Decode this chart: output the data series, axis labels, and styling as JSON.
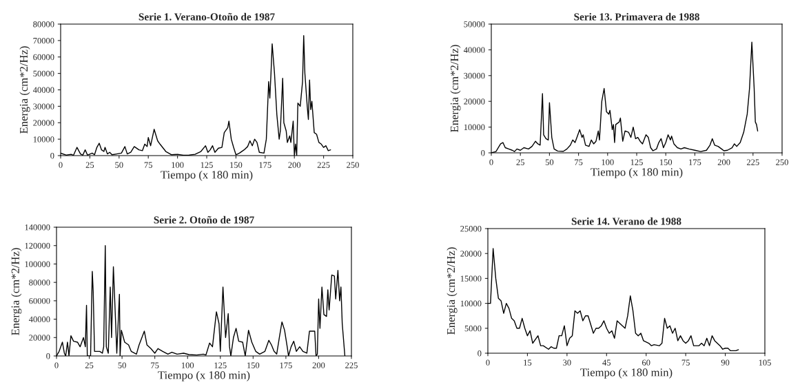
{
  "chart_data": [
    {
      "type": "line",
      "title": "Serie 1. Verano-Otoño de 1987",
      "xlabel": "Tiempo (x 180 min)",
      "ylabel": "Energia (cm*2/Hz)",
      "xlim": [
        0,
        250
      ],
      "ylim": [
        0,
        80000
      ],
      "xticks": [
        0,
        25,
        50,
        75,
        100,
        125,
        150,
        175,
        200,
        225,
        250
      ],
      "yticks": [
        0,
        10000,
        20000,
        30000,
        40000,
        50000,
        60000,
        70000,
        80000
      ],
      "grid": false,
      "marker": "none",
      "line_style": "solid",
      "series": [
        {
          "color": "#000000",
          "x": [
            0,
            5,
            9,
            11,
            14,
            17,
            19,
            21,
            23,
            27,
            29,
            31,
            33,
            35,
            37,
            38,
            40,
            42,
            44,
            48,
            52,
            55,
            57,
            60,
            63,
            67,
            70,
            72,
            74,
            75,
            77,
            80,
            83,
            85,
            90,
            95,
            100,
            105,
            110,
            115,
            120,
            124,
            126,
            128,
            130,
            132,
            135,
            138,
            140,
            143,
            144,
            146,
            148,
            150,
            153,
            157,
            160,
            162,
            164,
            166,
            168,
            170,
            174,
            176,
            178,
            179,
            180,
            181,
            183,
            185,
            187,
            188,
            190,
            191,
            193,
            194,
            196,
            197,
            199,
            200,
            201,
            202,
            203,
            205,
            207,
            208,
            209,
            211,
            212,
            213,
            214,
            215,
            217,
            219,
            221,
            223,
            225,
            227,
            229,
            231
          ],
          "values": [
            1500,
            300,
            800,
            200,
            5000,
            1000,
            300,
            3500,
            300,
            1500,
            500,
            5000,
            7500,
            3500,
            2500,
            5000,
            1000,
            2000,
            500,
            1000,
            1500,
            5500,
            1000,
            2000,
            5500,
            3500,
            3000,
            7000,
            5500,
            11000,
            6000,
            16000,
            9000,
            7000,
            2500,
            500,
            800,
            200,
            300,
            800,
            2500,
            6000,
            2000,
            3500,
            6000,
            2000,
            4500,
            5000,
            14000,
            17000,
            21000,
            10000,
            5000,
            500,
            1500,
            3500,
            5500,
            9000,
            6000,
            10000,
            8000,
            2000,
            1500,
            10000,
            45000,
            35000,
            50000,
            68000,
            50000,
            25000,
            10000,
            15000,
            47000,
            20000,
            15000,
            8000,
            12000,
            8000,
            21000,
            0,
            7000,
            0,
            32000,
            30000,
            45000,
            73000,
            50000,
            30000,
            22000,
            46000,
            28000,
            33000,
            14000,
            13000,
            8000,
            7000,
            5000,
            6000,
            3000,
            3500
          ]
        }
      ]
    },
    {
      "type": "line",
      "title": "Serie 13. Primavera de 1988",
      "xlabel": "Tiempo (x 180 min)",
      "ylabel": "Energia (cm*2/Hz)",
      "xlim": [
        0,
        250
      ],
      "ylim": [
        0,
        50000
      ],
      "xticks": [
        0,
        25,
        50,
        75,
        100,
        125,
        150,
        175,
        200,
        225,
        250
      ],
      "yticks": [
        0,
        10000,
        20000,
        30000,
        40000,
        50000
      ],
      "grid": false,
      "marker": "none",
      "line_style": "solid",
      "series": [
        {
          "color": "#000000",
          "x": [
            0,
            4,
            8,
            10,
            12,
            15,
            18,
            20,
            22,
            25,
            28,
            32,
            35,
            38,
            40,
            42,
            44,
            45,
            47,
            49,
            50,
            52,
            54,
            57,
            62,
            65,
            68,
            70,
            72,
            74,
            76,
            78,
            79,
            81,
            84,
            86,
            88,
            90,
            92,
            93,
            95,
            97,
            99,
            101,
            102,
            104,
            105,
            106,
            107,
            110,
            111,
            113,
            115,
            118,
            120,
            122,
            124,
            126,
            128,
            130,
            133,
            135,
            137,
            139,
            142,
            144,
            146,
            148,
            150,
            152,
            154,
            155,
            157,
            160,
            163,
            166,
            170,
            175,
            180,
            185,
            188,
            190,
            192,
            195,
            198,
            200,
            203,
            207,
            209,
            211,
            214,
            217,
            220,
            222,
            224,
            226,
            227,
            228,
            229
          ],
          "values": [
            0,
            500,
            3500,
            4000,
            2000,
            1500,
            1000,
            500,
            1500,
            1000,
            2000,
            1500,
            2500,
            4500,
            3500,
            3000,
            23000,
            7000,
            5500,
            5000,
            19500,
            6000,
            1500,
            700,
            600,
            1500,
            3000,
            5000,
            4000,
            6500,
            9000,
            6000,
            7000,
            3000,
            2500,
            5000,
            3500,
            4500,
            8500,
            5000,
            20000,
            25000,
            16000,
            15000,
            16500,
            9000,
            11000,
            4000,
            11000,
            12000,
            13500,
            4500,
            8500,
            8000,
            6000,
            10000,
            5500,
            6000,
            4500,
            3500,
            7000,
            6000,
            2000,
            800,
            1500,
            4000,
            5500,
            2000,
            4000,
            7000,
            5000,
            6500,
            3500,
            2000,
            1500,
            2000,
            1500,
            1000,
            500,
            1000,
            3000,
            5500,
            3000,
            2500,
            1500,
            800,
            1000,
            2000,
            3500,
            2500,
            4000,
            8000,
            15000,
            25000,
            43000,
            25000,
            12000,
            11000,
            8500
          ]
        }
      ]
    },
    {
      "type": "line",
      "title": "Serie 2. Otoño de 1987",
      "xlabel": "Tiempo (x 180 min)",
      "ylabel": "Energia (cm*2/Hz)",
      "xlim": [
        0,
        225
      ],
      "ylim": [
        0,
        140000
      ],
      "xticks": [
        0,
        25,
        50,
        75,
        100,
        125,
        150,
        175,
        200,
        225
      ],
      "yticks": [
        0,
        20000,
        40000,
        60000,
        80000,
        100000,
        120000,
        140000
      ],
      "grid": false,
      "marker": "none",
      "line_style": "solid",
      "series": [
        {
          "color": "#000000",
          "x": [
            0,
            2,
            4.5,
            6,
            7,
            8.4,
            9.5,
            11,
            13,
            16,
            18,
            20.6,
            22,
            22.9,
            23.5,
            26,
            27.3,
            28,
            29,
            33,
            35,
            36,
            37.2,
            38,
            39.5,
            41,
            42,
            43.4,
            45,
            46,
            48,
            48.5,
            49.5,
            52,
            55,
            57,
            61,
            63,
            67,
            69,
            72,
            75,
            77.4,
            81,
            85,
            88,
            92,
            97,
            101,
            107,
            112,
            114,
            116.8,
            119,
            122,
            124,
            125,
            127,
            129,
            131,
            132,
            133,
            135,
            137,
            139,
            142,
            144,
            146.5,
            149,
            152,
            155,
            159,
            162,
            164,
            166,
            168,
            170,
            172,
            174,
            176,
            177,
            179,
            181,
            183,
            185.5,
            188,
            191,
            193,
            197,
            198,
            199,
            200,
            201,
            202.5,
            204,
            206,
            207,
            208,
            210,
            212,
            213,
            214.7,
            216,
            217,
            218,
            220
          ],
          "values": [
            0,
            5000,
            15000,
            3000,
            0,
            15000,
            0,
            22000,
            16000,
            15000,
            10000,
            20000,
            10000,
            55000,
            0,
            0,
            92000,
            70000,
            5000,
            5000,
            3000,
            10000,
            120000,
            10000,
            3000,
            75000,
            20000,
            97000,
            40000,
            3000,
            67000,
            0,
            28000,
            15000,
            12000,
            5000,
            2000,
            12000,
            27000,
            12000,
            8000,
            3000,
            8000,
            5000,
            2000,
            4000,
            2000,
            3000,
            1500,
            1000,
            2000,
            1000,
            14000,
            10000,
            48000,
            35000,
            5000,
            75000,
            20000,
            46000,
            10000,
            0,
            20000,
            30000,
            16000,
            15000,
            0,
            28000,
            15000,
            5000,
            2000,
            5000,
            17000,
            12000,
            5000,
            2000,
            20000,
            37000,
            28000,
            10000,
            0,
            10000,
            16000,
            5000,
            10000,
            5000,
            3000,
            27000,
            27000,
            0,
            2000,
            62000,
            30000,
            75000,
            45000,
            43000,
            72000,
            50000,
            88000,
            87000,
            62000,
            93000,
            60000,
            75000,
            35000,
            0
          ]
        }
      ]
    },
    {
      "type": "line",
      "title": "Serie 14. Verano de 1988",
      "xlabel": "Tiempo (x 180 min)",
      "ylabel": "Energia (cm*2/Hz)",
      "xlim": [
        0,
        105
      ],
      "ylim": [
        0,
        25000
      ],
      "xticks": [
        0,
        15,
        30,
        45,
        60,
        75,
        90,
        105
      ],
      "yticks": [
        0,
        5000,
        10000,
        15000,
        20000,
        25000
      ],
      "grid": false,
      "marker": "none",
      "line_style": "solid",
      "series": [
        {
          "color": "#000000",
          "x": [
            0,
            1,
            2,
            3,
            4,
            5,
            6,
            7,
            8,
            9,
            10,
            11,
            12,
            13,
            14,
            15,
            16,
            17,
            19,
            20,
            21,
            23,
            24,
            25,
            26,
            27,
            28,
            29,
            30,
            31,
            32,
            33,
            34,
            35,
            36,
            37,
            38,
            40,
            41,
            42,
            43,
            44,
            45,
            46,
            47,
            48,
            49,
            51,
            52,
            53,
            54,
            55,
            56,
            57,
            58,
            59,
            61,
            62,
            63,
            65,
            66,
            67,
            68,
            69,
            70,
            71,
            72,
            73,
            74,
            75,
            76,
            77,
            78,
            80,
            81,
            82,
            83,
            84,
            85,
            86,
            88,
            89,
            90,
            91,
            92,
            94,
            95
          ],
          "values": [
            10000,
            10000,
            21000,
            15000,
            11000,
            10500,
            8000,
            10000,
            9000,
            7000,
            6500,
            5000,
            5000,
            7000,
            5000,
            3500,
            4500,
            2000,
            3500,
            1500,
            1500,
            800,
            1300,
            1000,
            1000,
            3500,
            3500,
            5500,
            1500,
            3000,
            3500,
            8500,
            8000,
            8500,
            6500,
            7500,
            7500,
            4000,
            5000,
            5000,
            5500,
            6500,
            5000,
            4000,
            4500,
            3000,
            6500,
            5500,
            5000,
            7500,
            11500,
            8500,
            4000,
            3500,
            4000,
            2500,
            2000,
            1500,
            1700,
            1500,
            2000,
            7000,
            5000,
            5500,
            4000,
            5000,
            2500,
            3500,
            2500,
            2000,
            2500,
            3500,
            1500,
            1500,
            2000,
            1500,
            3000,
            1500,
            3500,
            2500,
            1500,
            800,
            1000,
            1000,
            500,
            500,
            700
          ]
        }
      ]
    }
  ]
}
